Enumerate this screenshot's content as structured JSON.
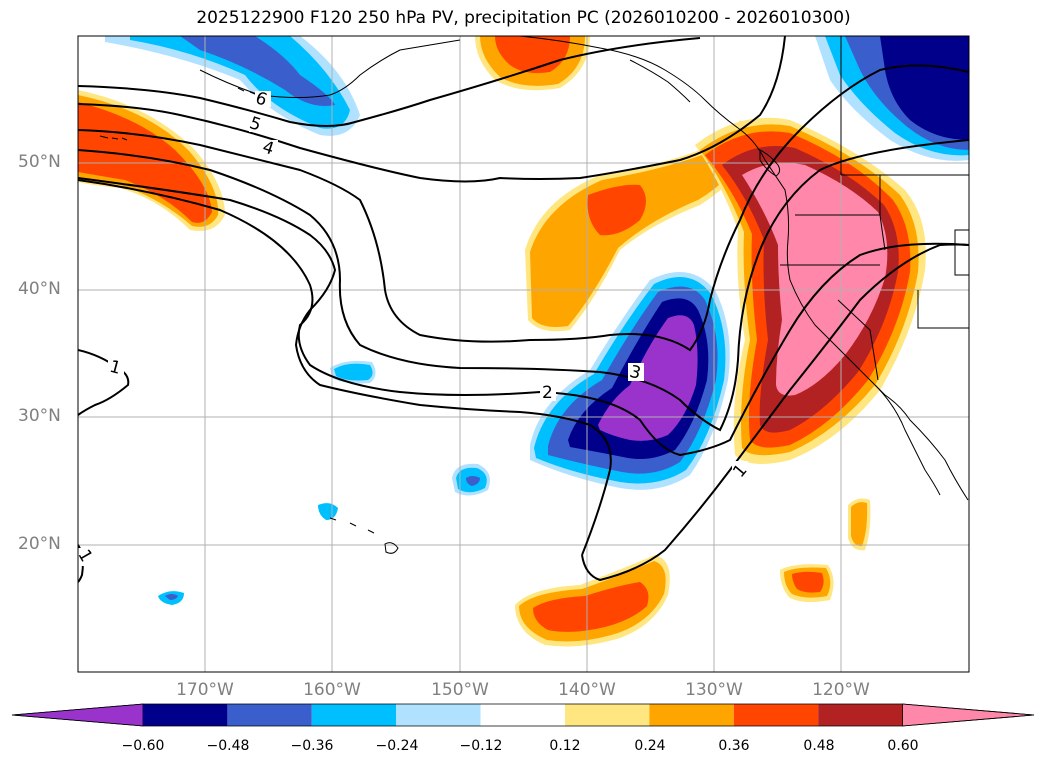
{
  "title": "2025122900 F120 250 hPa PV, precipitation PC (2026010200 - 2026010300)",
  "lat_labels": [
    "50°N",
    "40°N",
    "30°N",
    "20°N"
  ],
  "lon_labels": [
    "170°W",
    "160°W",
    "150°W",
    "140°W",
    "130°W",
    "120°W"
  ],
  "contour_labels": [
    "6",
    "5",
    "4",
    "3",
    "2",
    "1",
    "1",
    "1"
  ],
  "colorbar": {
    "ticks": [
      "−0.60",
      "−0.48",
      "−0.36",
      "−0.24",
      "−0.12",
      "0.12",
      "0.24",
      "0.36",
      "0.48",
      "0.60"
    ],
    "colors": [
      "#9933cc",
      "#00008b",
      "#3a5fcd",
      "#00bfff",
      "#b0e2ff",
      "#ffffff",
      "#ffe680",
      "#ffa500",
      "#ff4500",
      "#b22222",
      "#ff88aa"
    ]
  },
  "colors": {
    "land_line": "#000000",
    "grid": "#b0b0b0",
    "axis_label": "#808080"
  }
}
